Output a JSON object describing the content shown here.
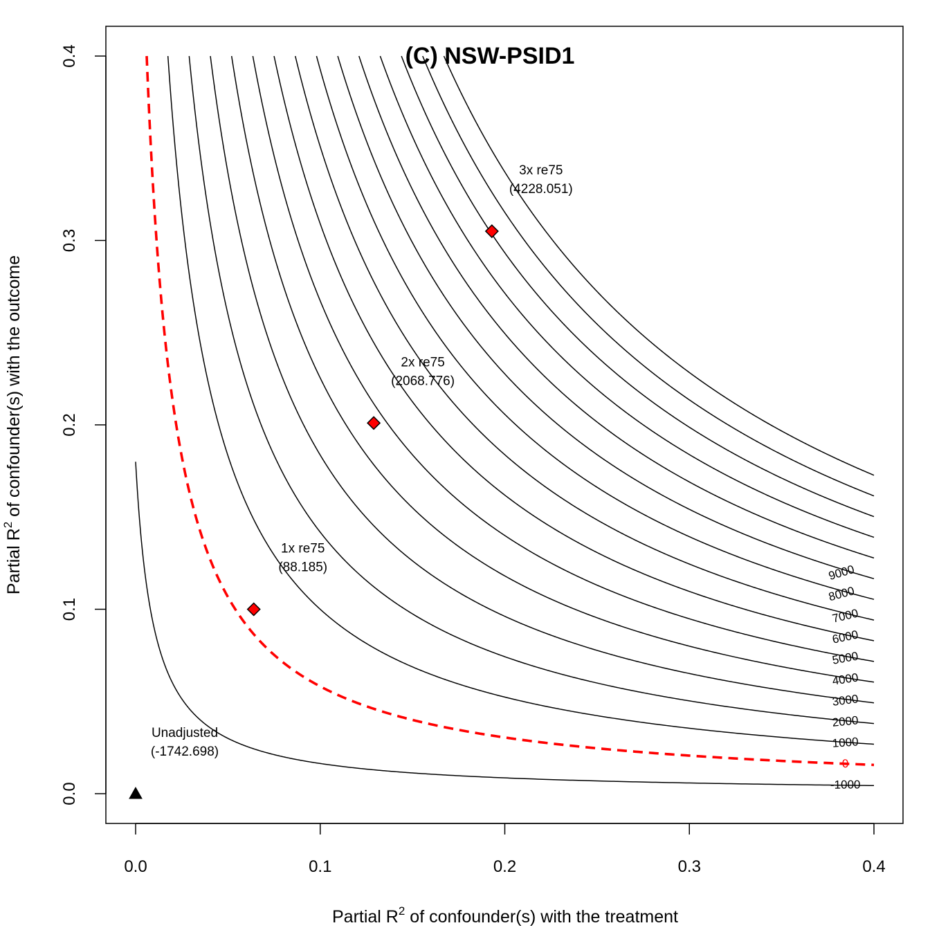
{
  "chart_data": {
    "type": "contour",
    "title": "(C) NSW-PSID1",
    "xlabel_pre": "Partial R",
    "xlabel_post": " of confounder(s) with the treatment",
    "ylabel_pre": "Partial R",
    "ylabel_post": " of confounder(s) with the outcome",
    "superscript": "2",
    "xlim": [
      0,
      0.4
    ],
    "ylim": [
      0,
      0.4
    ],
    "x_ticks": [
      {
        "value": 0.0,
        "label": "0.0"
      },
      {
        "value": 0.1,
        "label": "0.1"
      },
      {
        "value": 0.2,
        "label": "0.2"
      },
      {
        "value": 0.3,
        "label": "0.3"
      },
      {
        "value": 0.4,
        "label": "0.4"
      }
    ],
    "y_ticks": [
      {
        "value": 0.0,
        "label": "0.0"
      },
      {
        "value": 0.1,
        "label": "0.1"
      },
      {
        "value": 0.2,
        "label": "0.2"
      },
      {
        "value": 0.3,
        "label": "0.3"
      },
      {
        "value": 0.4,
        "label": "0.4"
      }
    ],
    "contour_color": "#000000",
    "threshold_color": "#ff0000",
    "contours": [
      {
        "level": -1000,
        "label": "-1000",
        "k": 0.0018,
        "threshold": false
      },
      {
        "level": 0,
        "label": "0",
        "k": 0.0064,
        "threshold": true
      },
      {
        "level": 1000,
        "label": "1000",
        "k": 0.011,
        "threshold": false
      },
      {
        "level": 2000,
        "label": "2000",
        "k": 0.0156,
        "threshold": false
      },
      {
        "level": 3000,
        "label": "3000",
        "k": 0.0202,
        "threshold": false
      },
      {
        "level": 4000,
        "label": "4000",
        "k": 0.0248,
        "threshold": false
      },
      {
        "level": 5000,
        "label": "5000",
        "k": 0.0294,
        "threshold": false
      },
      {
        "level": 6000,
        "label": "6000",
        "k": 0.034,
        "threshold": false
      },
      {
        "level": 7000,
        "label": "7000",
        "k": 0.0386,
        "threshold": false
      },
      {
        "level": 8000,
        "label": "8000",
        "k": 0.0432,
        "threshold": false
      },
      {
        "level": 9000,
        "label": "9000",
        "k": 0.0478,
        "threshold": false
      },
      {
        "level": 10000,
        "label": "",
        "k": 0.0524,
        "threshold": false
      },
      {
        "level": 11000,
        "label": "",
        "k": 0.057,
        "threshold": false
      },
      {
        "level": 12000,
        "label": "",
        "k": 0.0616,
        "threshold": false
      },
      {
        "level": 13000,
        "label": "",
        "k": 0.0662,
        "threshold": false
      },
      {
        "level": 14000,
        "label": "",
        "k": 0.0708,
        "threshold": false
      }
    ],
    "points": [
      {
        "name": "unadjusted",
        "x": 0.0,
        "y": 0.0,
        "marker": "triangle",
        "color": "#000000",
        "label_line1": "Unadjusted",
        "label_line2": "(-1742.698)"
      },
      {
        "name": "1x-re75",
        "x": 0.064,
        "y": 0.1,
        "marker": "diamond",
        "color": "#ff0000",
        "label_line1": "1x re75",
        "label_line2": "(88.185)"
      },
      {
        "name": "2x-re75",
        "x": 0.129,
        "y": 0.201,
        "marker": "diamond",
        "color": "#ff0000",
        "label_line1": "2x re75",
        "label_line2": "(2068.776)"
      },
      {
        "name": "3x-re75",
        "x": 0.193,
        "y": 0.305,
        "marker": "diamond",
        "color": "#ff0000",
        "label_line1": "3x re75",
        "label_line2": "(4228.051)"
      }
    ]
  }
}
